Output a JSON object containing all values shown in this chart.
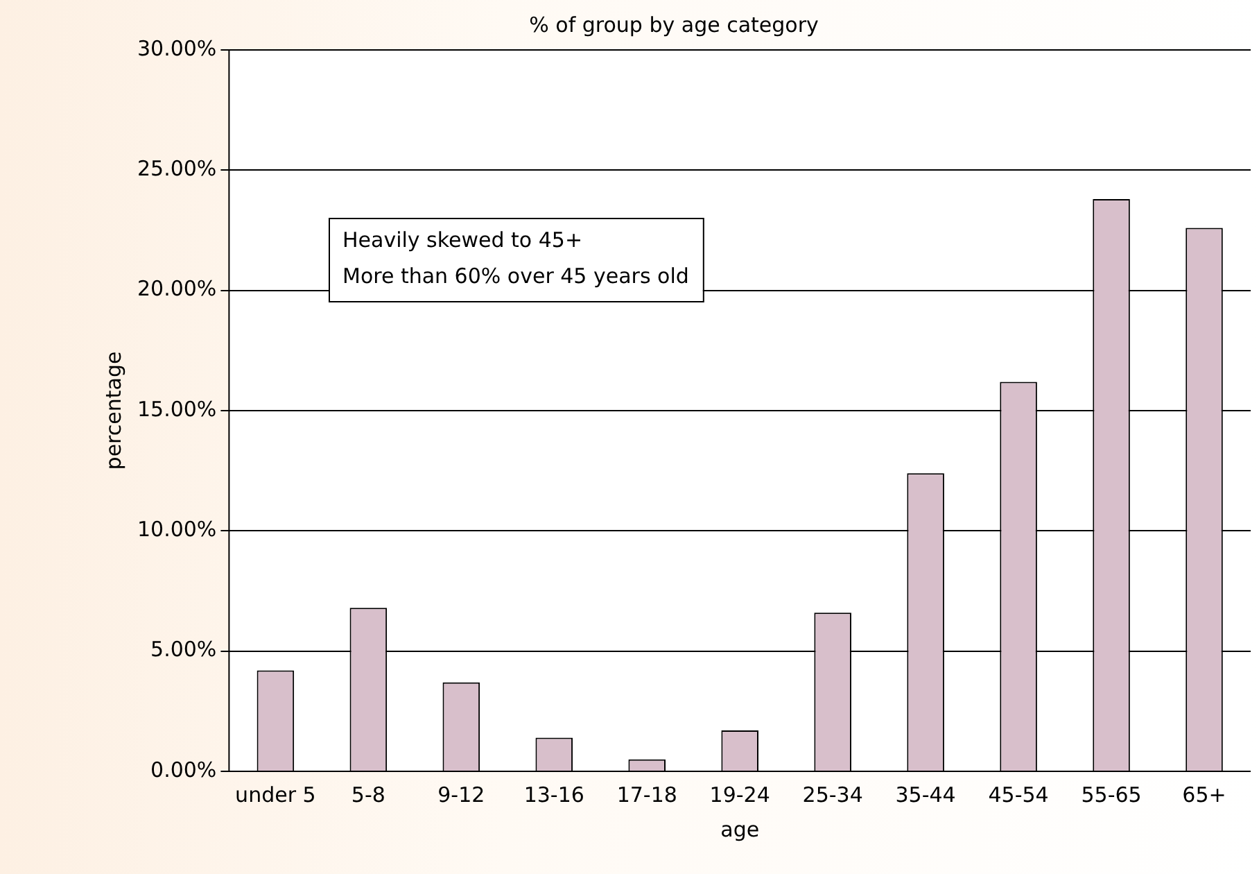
{
  "chart_data": {
    "type": "bar",
    "title": "% of group by age category",
    "xlabel": "age",
    "ylabel": "percentage",
    "categories": [
      "under 5",
      "5-8",
      "9-12",
      "13-16",
      "17-18",
      "19-24",
      "25-34",
      "35-44",
      "45-54",
      "55-65",
      "65+"
    ],
    "values": [
      4.2,
      6.8,
      3.7,
      1.4,
      0.5,
      1.7,
      6.6,
      12.4,
      16.2,
      23.8,
      22.6
    ],
    "color": "#d8bfcb",
    "ylim": [
      0,
      30
    ],
    "yticks": [
      {
        "value": 0,
        "label": "0.00%"
      },
      {
        "value": 5,
        "label": "5.00%"
      },
      {
        "value": 10,
        "label": "10.00%"
      },
      {
        "value": 15,
        "label": "15.00%"
      },
      {
        "value": 20,
        "label": "20.00%"
      },
      {
        "value": 25,
        "label": "25.00%"
      },
      {
        "value": 30,
        "label": "30.00%"
      }
    ],
    "grid": "y",
    "legend": false,
    "annotations": [
      "Heavily skewed to 45+",
      "More than 60% over 45 years old"
    ]
  }
}
